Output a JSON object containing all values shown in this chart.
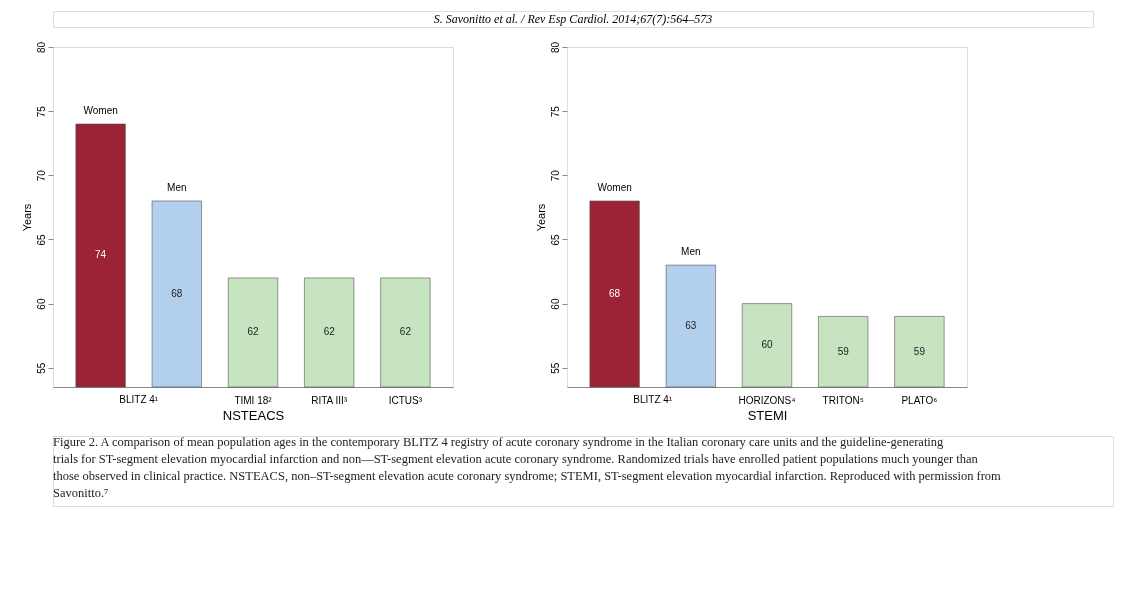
{
  "chart_data": [
    {
      "type": "bar",
      "categories": [
        null,
        null,
        "TIMI 18²",
        "RITA III³",
        "ICTUS³"
      ],
      "xlabel": "NSTEACS",
      "ylabel": "Years",
      "ylim": [
        53.5,
        80
      ],
      "yticks": [
        55,
        60,
        65,
        70,
        75,
        80
      ],
      "grid": false,
      "data_labels": true,
      "series": [
        {
          "name": "Women",
          "color": "#9b2335",
          "values": [
            74,
            null,
            null,
            null,
            null
          ]
        },
        {
          "name": "Men",
          "color": "#b3cfee",
          "values": [
            null,
            68,
            null,
            null,
            null
          ]
        },
        {
          "color": "#c6e4c0",
          "values": [
            null,
            null,
            62,
            62,
            62
          ]
        }
      ],
      "annotations": [
        "BLITZ 4¹"
      ]
    },
    {
      "type": "bar",
      "categories": [
        null,
        null,
        "HORIZONS⁴",
        "TRITON⁵",
        "PLATO⁶"
      ],
      "xlabel": "STEMI",
      "ylabel": "Years",
      "ylim": [
        53.5,
        80
      ],
      "yticks": [
        55,
        60,
        65,
        70,
        75,
        80
      ],
      "grid": false,
      "data_labels": true,
      "series": [
        {
          "name": "Women",
          "color": "#9b2335",
          "values": [
            68,
            null,
            null,
            null,
            null
          ]
        },
        {
          "name": "Men",
          "color": "#b3cfee",
          "values": [
            null,
            63,
            null,
            null,
            null
          ]
        },
        {
          "color": "#c6e4c0",
          "values": [
            null,
            null,
            60,
            59,
            59
          ]
        }
      ],
      "annotations": [
        "BLITZ 4¹"
      ]
    },
    {
      "type": "other",
      "annotations": [
        "S. Savonitto et al. / Rev Esp Cardiol. 2014;67(7):564–573",
        "Figure 2. A comparison of mean population ages in the contemporary BLITZ 4 registry of acute coronary syndrome in the Italian coronary care units and the guideline-generating trials for ST-segment elevation myocardial infarction and non—ST-segment elevation acute coronary syndrome. Randomized trials have enrolled patient populations much younger than those observed in clinical practice. NSTEACS, non–ST-segment elevation acute coronary syndrome; STEMI, ST-segment elevation myocardial infarction. Reproduced with permission from Savonitto.⁷"
      ]
    }
  ]
}
